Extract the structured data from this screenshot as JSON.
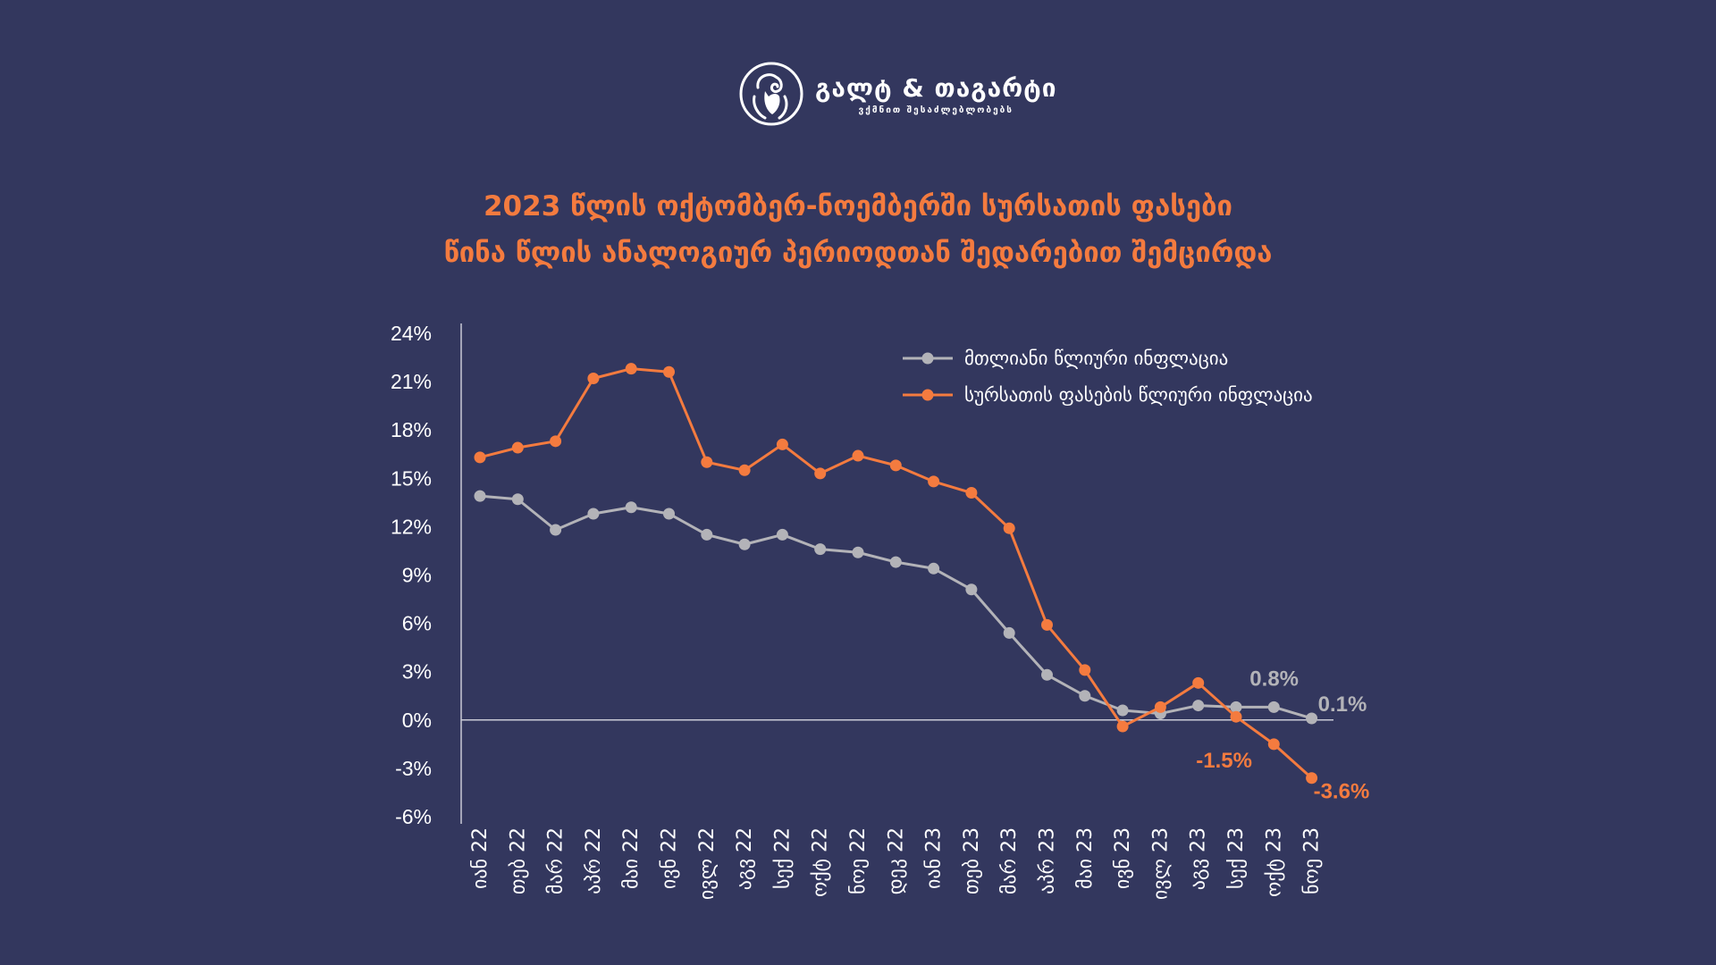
{
  "logo": {
    "name": "გალტ & თაგარტი",
    "tagline": "ვქმნით შესაძლებლობებს"
  },
  "title": {
    "line1": "2023 წლის ოქტომბერ-ნოემბერში სურსათის ფასები",
    "line2": "წინა წლის ანალოგიურ პერიოდთან შედარებით შემცირდა"
  },
  "colors": {
    "background": "#33375e",
    "accent": "#f47b3f",
    "grey_series": "#b3b3b8",
    "axis": "#c9cad6"
  },
  "chart_data": {
    "type": "line",
    "x": [
      "იან 22",
      "თებ 22",
      "მარ 22",
      "აპრ 22",
      "მაი 22",
      "ივნ 22",
      "ივლ 22",
      "აგვ 22",
      "სექ 22",
      "ოქტ 22",
      "ნოე 22",
      "დეკ 22",
      "იან 23",
      "თებ 23",
      "მარ 23",
      "აპრ 23",
      "მაი 23",
      "ივნ 23",
      "ივლ 23",
      "აგვ 23",
      "სექ 23",
      "ოქტ 23",
      "ნოე 23"
    ],
    "series": [
      {
        "name": "მთლიანი წლიური ინფლაცია",
        "color": "#b3b3b8",
        "values": [
          13.9,
          13.7,
          11.8,
          12.8,
          13.2,
          12.8,
          11.5,
          10.9,
          11.5,
          10.6,
          10.4,
          9.8,
          9.4,
          8.1,
          5.4,
          2.8,
          1.5,
          0.6,
          0.4,
          0.9,
          0.8,
          0.8,
          0.1
        ]
      },
      {
        "name": "სურსათის ფასების წლიური ინფლაცია",
        "color": "#f47b3f",
        "values": [
          16.3,
          16.9,
          17.3,
          21.2,
          21.8,
          21.6,
          16.0,
          15.5,
          17.1,
          15.3,
          16.4,
          15.8,
          14.8,
          14.1,
          11.9,
          5.9,
          3.1,
          -0.4,
          0.8,
          2.3,
          0.2,
          -1.5,
          -3.6
        ]
      }
    ],
    "yticks": [
      "24%",
      "21%",
      "18%",
      "15%",
      "12%",
      "9%",
      "6%",
      "3%",
      "0%",
      "-3%",
      "-6%"
    ],
    "ylim": [
      -6,
      24
    ],
    "annotations": [
      {
        "text": "0.8%",
        "series": 0,
        "index": 21
      },
      {
        "text": "0.1%",
        "series": 0,
        "index": 22
      },
      {
        "text": "-1.5%",
        "series": 1,
        "index": 21
      },
      {
        "text": "-3.6%",
        "series": 1,
        "index": 22
      }
    ],
    "legend_position": "top-right",
    "grid": false
  }
}
